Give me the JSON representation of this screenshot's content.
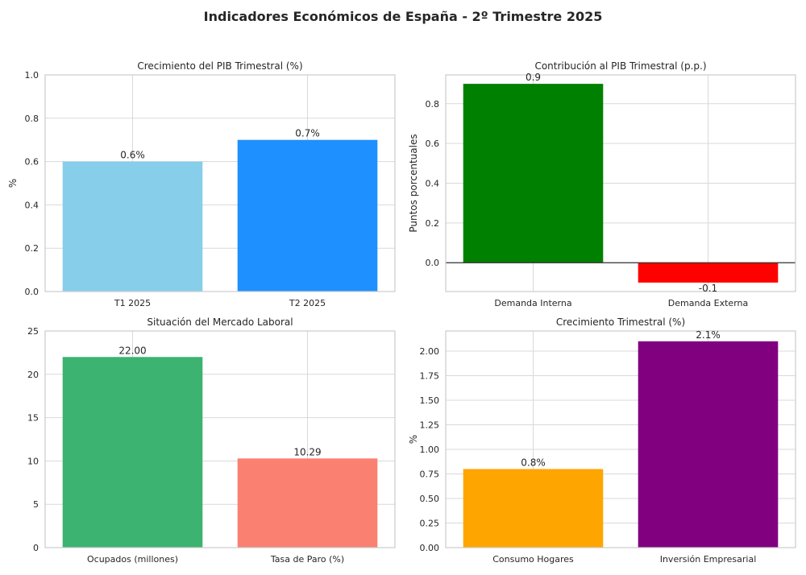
{
  "figure_title": "Indicadores Económicos de España - 2º Trimestre 2025",
  "chart_data": [
    {
      "type": "bar",
      "title": "Crecimiento del PIB Trimestral (%)",
      "categories": [
        "T1 2025",
        "T2 2025"
      ],
      "values": [
        0.6,
        0.7
      ],
      "data_labels": [
        "0.6%",
        "0.7%"
      ],
      "colors": [
        "#87CEEB",
        "#1E90FF"
      ],
      "xlabel": "",
      "ylabel": "%",
      "ylim": [
        0,
        1.0
      ],
      "yticks": [
        0,
        0.2,
        0.4,
        0.6,
        0.8,
        1.0
      ],
      "ytick_labels": [
        "0.0",
        "0.2",
        "0.4",
        "0.6",
        "0.8",
        "1.0"
      ],
      "zero_line": false,
      "grid": true
    },
    {
      "type": "bar",
      "title": "Contribución al PIB Trimestral (p.p.)",
      "categories": [
        "Demanda Interna",
        "Demanda Externa"
      ],
      "values": [
        0.9,
        -0.1
      ],
      "data_labels": [
        "0.9",
        "-0.1"
      ],
      "colors": [
        "#008000",
        "#FF0000"
      ],
      "xlabel": "",
      "ylabel": "Puntos porcentuales",
      "ylim": [
        -0.145,
        0.945
      ],
      "yticks": [
        0,
        0.2,
        0.4,
        0.6,
        0.8
      ],
      "ytick_labels": [
        "0.0",
        "0.2",
        "0.4",
        "0.6",
        "0.8"
      ],
      "zero_line": true,
      "grid": true
    },
    {
      "type": "bar",
      "title": "Situación del Mercado Laboral",
      "categories": [
        "Ocupados (millones)",
        "Tasa de Paro (%)"
      ],
      "values": [
        22.0,
        10.29
      ],
      "data_labels": [
        "22.00",
        "10.29"
      ],
      "colors": [
        "#3CB371",
        "#FA8072"
      ],
      "xlabel": "",
      "ylabel": "",
      "ylim": [
        0,
        25
      ],
      "yticks": [
        0,
        5,
        10,
        15,
        20,
        25
      ],
      "ytick_labels": [
        "0",
        "5",
        "10",
        "15",
        "20",
        "25"
      ],
      "zero_line": false,
      "grid": true
    },
    {
      "type": "bar",
      "title": "Crecimiento Trimestral (%)",
      "categories": [
        "Consumo Hogares",
        "Inversión Empresarial"
      ],
      "values": [
        0.8,
        2.1
      ],
      "data_labels": [
        "0.8%",
        "2.1%"
      ],
      "colors": [
        "#FFA500",
        "#800080"
      ],
      "xlabel": "",
      "ylabel": "%",
      "ylim": [
        0,
        2.205
      ],
      "yticks": [
        0,
        0.25,
        0.5,
        0.75,
        1.0,
        1.25,
        1.5,
        1.75,
        2.0
      ],
      "ytick_labels": [
        "0.00",
        "0.25",
        "0.50",
        "0.75",
        "1.00",
        "1.25",
        "1.50",
        "1.75",
        "2.00"
      ],
      "zero_line": false,
      "grid": true
    }
  ]
}
